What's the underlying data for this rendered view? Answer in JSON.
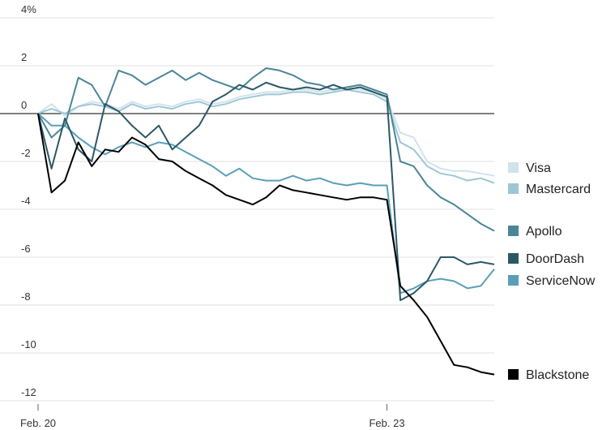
{
  "chart_data": {
    "type": "line",
    "y_unit_suffix": "%",
    "ylim": [
      -12,
      4
    ],
    "yticks": [
      4,
      2,
      0,
      -2,
      -4,
      -6,
      -8,
      -10,
      -12
    ],
    "x_tick_labels": [
      "Feb. 20",
      "Feb. 23"
    ],
    "grid": true,
    "legend_placement": "right",
    "series": [
      {
        "name": "Visa",
        "color": "#cfe3ec",
        "values": [
          0.0,
          0.4,
          -0.1,
          0.3,
          0.5,
          0.4,
          0.2,
          0.5,
          0.3,
          0.4,
          0.3,
          0.5,
          0.6,
          0.4,
          0.5,
          0.7,
          0.8,
          0.9,
          0.9,
          1.0,
          1.0,
          0.9,
          1.0,
          1.1,
          1.0,
          0.9,
          0.6,
          -0.8,
          -1.0,
          -2.0,
          -2.3,
          -2.4,
          -2.4,
          -2.5,
          -2.6
        ]
      },
      {
        "name": "Mastercard",
        "color": "#9ec6d5",
        "values": [
          0.0,
          0.2,
          0.0,
          0.3,
          0.4,
          0.3,
          0.1,
          0.4,
          0.2,
          0.3,
          0.2,
          0.4,
          0.5,
          0.3,
          0.4,
          0.6,
          0.7,
          0.8,
          0.8,
          0.9,
          0.9,
          0.8,
          0.9,
          1.0,
          0.9,
          0.8,
          0.5,
          -1.2,
          -1.5,
          -2.2,
          -2.5,
          -2.6,
          -2.8,
          -2.7,
          -2.9
        ]
      },
      {
        "name": "Apollo",
        "color": "#4a8599",
        "values": [
          0.0,
          -1.0,
          -0.5,
          1.5,
          1.2,
          0.3,
          1.8,
          1.6,
          1.2,
          1.5,
          1.8,
          1.4,
          1.7,
          1.4,
          1.2,
          1.0,
          1.5,
          1.9,
          1.8,
          1.6,
          1.3,
          1.2,
          1.0,
          1.1,
          1.2,
          1.0,
          0.8,
          -2.0,
          -2.2,
          -3.0,
          -3.5,
          -3.8,
          -4.2,
          -4.6,
          -4.9
        ]
      },
      {
        "name": "DoorDash",
        "color": "#2c5866",
        "values": [
          0.0,
          -2.3,
          -0.2,
          -1.5,
          -2.0,
          0.4,
          0.1,
          -0.5,
          -1.0,
          -0.5,
          -1.5,
          -1.0,
          -0.5,
          0.5,
          0.8,
          1.2,
          1.0,
          1.3,
          1.1,
          1.0,
          1.1,
          1.0,
          1.2,
          1.0,
          1.1,
          0.9,
          0.7,
          -7.8,
          -7.5,
          -7.0,
          -6.0,
          -6.0,
          -6.3,
          -6.2,
          -6.3
        ]
      },
      {
        "name": "ServiceNow",
        "color": "#5a9fb8",
        "values": [
          0.0,
          -0.5,
          -0.5,
          -1.0,
          -1.4,
          -1.7,
          -1.4,
          -1.2,
          -1.4,
          -1.2,
          -1.3,
          -1.6,
          -1.9,
          -2.2,
          -2.6,
          -2.3,
          -2.7,
          -2.8,
          -2.8,
          -2.6,
          -2.8,
          -2.7,
          -2.9,
          -3.0,
          -2.9,
          -3.0,
          -3.0,
          -7.5,
          -7.3,
          -7.0,
          -6.9,
          -7.0,
          -7.3,
          -7.2,
          -6.5
        ]
      },
      {
        "name": "Blackstone",
        "color": "#000000",
        "values": [
          0.0,
          -3.3,
          -2.8,
          -1.2,
          -2.2,
          -1.5,
          -1.6,
          -1.0,
          -1.3,
          -1.9,
          -2.0,
          -2.4,
          -2.7,
          -3.0,
          -3.4,
          -3.6,
          -3.8,
          -3.5,
          -3.0,
          -3.2,
          -3.3,
          -3.4,
          -3.5,
          -3.6,
          -3.5,
          -3.5,
          -3.6,
          -7.2,
          -7.8,
          -8.5,
          -9.5,
          -10.5,
          -10.6,
          -10.8,
          -10.9
        ]
      }
    ]
  }
}
